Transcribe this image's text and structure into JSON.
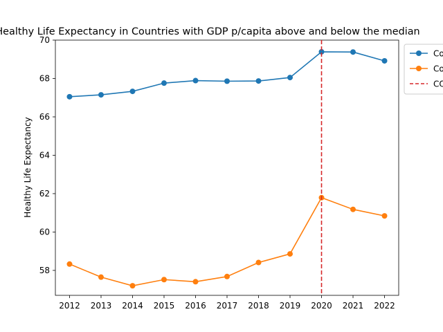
{
  "chart_data": {
    "type": "line",
    "title": "Healthy Life Expectancy in Countries with GDP p/capita above and below the median",
    "xlabel": "",
    "ylabel": "Healthy Life Expectancy",
    "x": [
      2012,
      2013,
      2014,
      2015,
      2016,
      2017,
      2018,
      2019,
      2020,
      2021,
      2022
    ],
    "xlim": [
      2011.55,
      2022.45
    ],
    "ylim": [
      56.7,
      70.0
    ],
    "yticks": [
      58,
      60,
      62,
      64,
      66,
      68,
      70
    ],
    "grid": false,
    "legend_placement": "outside-top-right",
    "series": [
      {
        "name": "Co",
        "color": "#1f77b4",
        "values": [
          67.05,
          67.15,
          67.33,
          67.76,
          67.89,
          67.86,
          67.87,
          68.05,
          69.39,
          69.38,
          68.92
        ]
      },
      {
        "name": "Co",
        "color": "#ff7f0e",
        "values": [
          58.33,
          57.65,
          57.2,
          57.52,
          57.41,
          57.68,
          58.41,
          58.86,
          61.79,
          61.18,
          60.84
        ]
      }
    ],
    "annotations": [
      {
        "type": "vline",
        "x": 2020,
        "label": "CO",
        "color": "#d62728",
        "style": "dashed"
      }
    ]
  }
}
